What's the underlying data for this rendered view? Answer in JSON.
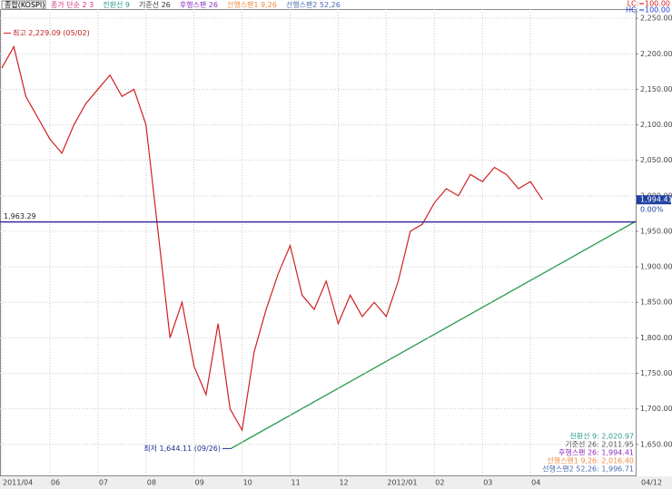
{
  "chart_data": {
    "type": "line",
    "title": "종합(KOSPI)",
    "legend": [
      {
        "name": "종가 단순 2 3",
        "color": "#d0307a"
      },
      {
        "name": "전환선 9",
        "color": "#2a9a8a"
      },
      {
        "name": "기준선 26",
        "color": "#333333"
      },
      {
        "name": "후행스팬 26",
        "color": "#8a2cc0"
      },
      {
        "name": "선행스팬1 9,26",
        "color": "#f08a40"
      },
      {
        "name": "선행스팬2 52,26",
        "color": "#4a6ab0"
      }
    ],
    "status": [
      {
        "name": "전환선 9: 2,020.97",
        "color": "#2a9a8a"
      },
      {
        "name": "기준선 26: 2,011.95",
        "color": "#555555"
      },
      {
        "name": "후행스팬 26: 1,994.41",
        "color": "#8a2cc0"
      },
      {
        "name": "선행스팬1 9,26: 2,016.40",
        "color": "#f08a40"
      },
      {
        "name": "선행스팬2 52,26: 1,996.71",
        "color": "#4a6ab0"
      }
    ],
    "scale_notes": [
      {
        "label": "LC:=100.00",
        "color": "#d02020"
      },
      {
        "label": "HC:=100.00",
        "color": "#2040d0"
      }
    ],
    "categories": [
      "2011/04",
      null,
      null,
      null,
      "06",
      null,
      null,
      null,
      "07",
      null,
      null,
      null,
      "08",
      null,
      null,
      null,
      "09",
      null,
      null,
      null,
      "10",
      null,
      null,
      null,
      "11",
      null,
      null,
      null,
      "12",
      null,
      null,
      null,
      "2012/01",
      null,
      null,
      null,
      "02",
      null,
      null,
      null,
      "03",
      null,
      null,
      null,
      "04",
      null
    ],
    "end_label": "04/12",
    "series": [
      {
        "name": "종합(KOSPI)",
        "color": "#d02020",
        "values": [
          2180,
          2210,
          2140,
          2110,
          2080,
          2060,
          2100,
          2130,
          2150,
          2170,
          2140,
          2150,
          2100,
          1950,
          1800,
          1850,
          1760,
          1720,
          1820,
          1700,
          1670,
          1780,
          1840,
          1890,
          1930,
          1860,
          1840,
          1880,
          1820,
          1860,
          1830,
          1850,
          1830,
          1880,
          1950,
          1960,
          1990,
          2010,
          2000,
          2030,
          2020,
          2040,
          2030,
          2010,
          2020,
          1994.41
        ]
      }
    ],
    "annotations": [
      {
        "label": "최고 2,229.09 (05/02)",
        "value": 2229.09
      },
      {
        "label": "최저 1,644.11 (09/26)",
        "value": 1644.11
      },
      {
        "label": "1,963.29",
        "value": 1963.29
      }
    ],
    "last": {
      "value": 1994.41,
      "label": "1,994.41",
      "change": "0.00%"
    },
    "ylim": [
      1605,
      2263
    ],
    "yticks": [
      {
        "value": 1650,
        "label": "1,650.00"
      },
      {
        "value": 1700,
        "label": "1,700.00"
      },
      {
        "value": 1750,
        "label": "1,750.00"
      },
      {
        "value": 1800,
        "label": "1,800.00"
      },
      {
        "value": 1850,
        "label": "1,850.00"
      },
      {
        "value": 1900,
        "label": "1,900.00"
      },
      {
        "value": 1950,
        "label": "1,950.00"
      },
      {
        "value": 2000,
        "label": "2,000.00"
      },
      {
        "value": 2050,
        "label": "2,050.00"
      },
      {
        "value": 2100,
        "label": "2,100.00"
      },
      {
        "value": 2150,
        "label": "2,150.00"
      },
      {
        "value": 2200,
        "label": "2,200.00"
      },
      {
        "value": 2250,
        "label": "2,250.00"
      }
    ],
    "grid": true
  }
}
